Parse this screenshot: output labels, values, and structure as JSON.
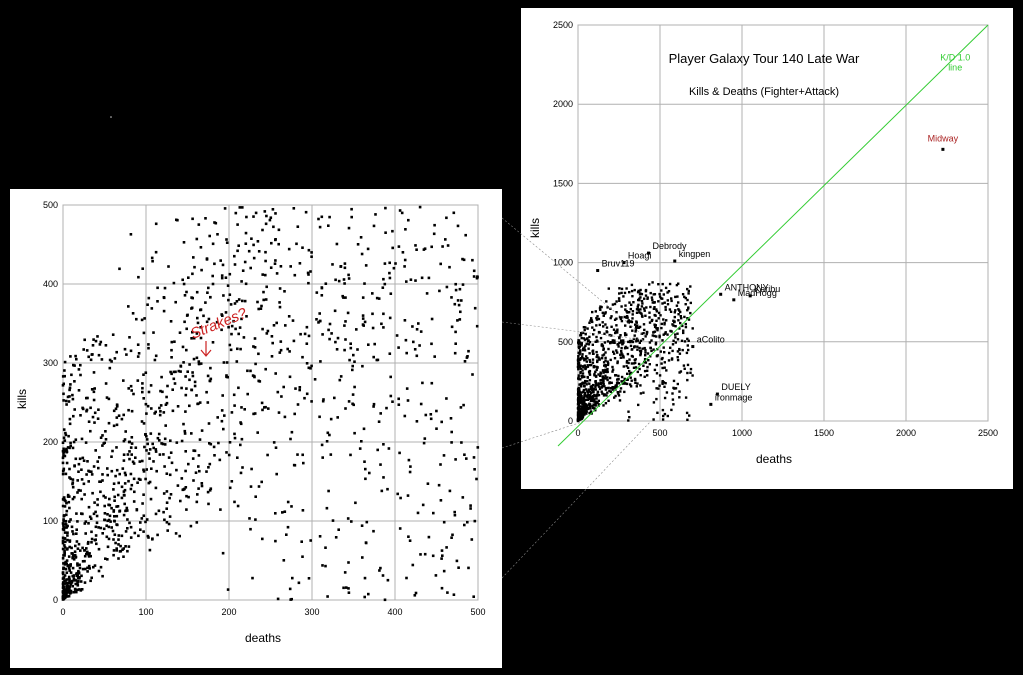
{
  "chart_data": [
    {
      "id": "overview",
      "type": "scatter",
      "title": "Player Galaxy Tour 140 Late War",
      "subtitle": "Kills & Deaths (Fighter+Attack)",
      "xlabel": "deaths",
      "ylabel": "kills",
      "xlim": [
        0,
        2500
      ],
      "ylim": [
        0,
        2500
      ],
      "xticks": [
        0,
        500,
        1000,
        1500,
        2000,
        2500
      ],
      "yticks": [
        0,
        500,
        1000,
        1500,
        2000,
        2500
      ],
      "grid": true,
      "reference_line": {
        "label": "K/D 1.0\nline",
        "x": [
          0,
          2500
        ],
        "y": [
          0,
          2500
        ],
        "color": "#33cc33"
      },
      "labeled_points": [
        {
          "name": "Midway",
          "x": 2225,
          "y": 1715,
          "color": "#aa2222"
        },
        {
          "name": "Debrody",
          "x": 430,
          "y": 1060,
          "color": "#000000"
        },
        {
          "name": "Hoagi",
          "x": 280,
          "y": 1000,
          "color": "#000000"
        },
        {
          "name": "kingpen",
          "x": 590,
          "y": 1010,
          "color": "#000000"
        },
        {
          "name": "Bruv119",
          "x": 120,
          "y": 950,
          "color": "#000000"
        },
        {
          "name": "ANTHONY",
          "x": 870,
          "y": 800,
          "color": "#000000"
        },
        {
          "name": "Karibu",
          "x": 1050,
          "y": 790,
          "color": "#000000"
        },
        {
          "name": "MadHogg",
          "x": 950,
          "y": 765,
          "color": "#000000"
        },
        {
          "name": "aColito",
          "x": 700,
          "y": 470,
          "color": "#000000"
        },
        {
          "name": "DUELY",
          "x": 850,
          "y": 170,
          "color": "#000000"
        },
        {
          "name": "ironmage",
          "x": 810,
          "y": 105,
          "color": "#000000"
        }
      ],
      "cluster": {
        "x_max": 700,
        "y_max": 880,
        "n": 1100
      }
    },
    {
      "id": "zoom",
      "type": "scatter",
      "xlabel": "deaths",
      "ylabel": "kills",
      "xlim": [
        0,
        500
      ],
      "ylim": [
        0,
        500
      ],
      "xticks": [
        0,
        100,
        200,
        300,
        400,
        500
      ],
      "yticks": [
        0,
        100,
        200,
        300,
        400,
        500
      ],
      "grid": true,
      "annotation": {
        "text": "Strakes?",
        "x": 175,
        "y": 310,
        "color": "#cc2222"
      },
      "cluster": {
        "x_max": 500,
        "y_max": 500,
        "n": 1500
      }
    }
  ],
  "colors": {
    "background": "#000000",
    "panel": "#ffffff",
    "grid": "#b0b0b0",
    "point": "#000000",
    "kd_line": "#33cc33",
    "annotation": "#cc2222"
  }
}
